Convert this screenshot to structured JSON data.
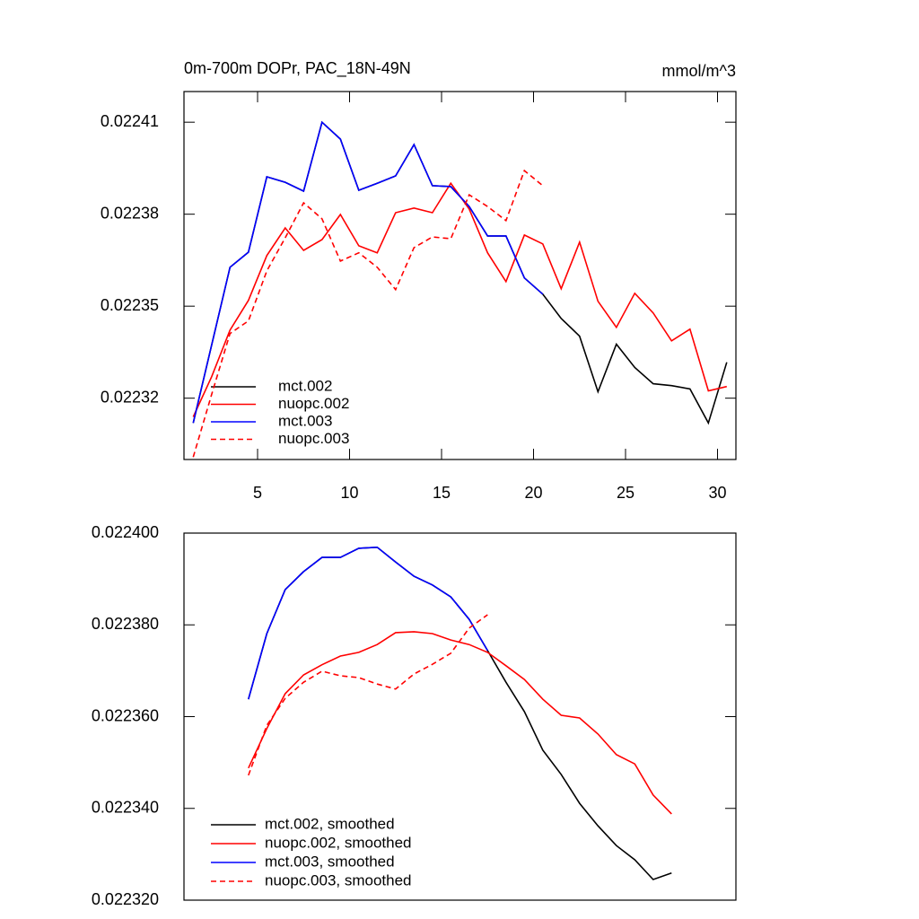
{
  "chart_data": [
    {
      "type": "line",
      "title": "0m-700m DOPr, PAC_18N-49N",
      "unit_label": "mmol/m^3",
      "x": [
        1.5,
        2.5,
        3.5,
        4.5,
        5.5,
        6.5,
        7.5,
        8.5,
        9.5,
        10.5,
        11.5,
        12.5,
        13.5,
        14.5,
        15.5,
        16.5,
        17.5,
        18.5,
        19.5,
        20.5,
        21.5,
        22.5,
        23.5,
        24.5,
        25.5,
        26.5,
        27.5,
        28.5,
        29.5,
        30.5
      ],
      "xlim": [
        1,
        31
      ],
      "xticks": [
        5,
        10,
        15,
        20,
        25,
        30
      ],
      "ylim": [
        0.0223,
        0.02242
      ],
      "yticks": [
        0.02232,
        0.02235,
        0.02238,
        0.02241
      ],
      "legend": "lower left",
      "series": [
        {
          "name": "mct.002",
          "color": "#000000",
          "dash": false,
          "values": [
            0.0223119,
            0.0223373,
            0.0223627,
            0.0223676,
            0.0223922,
            0.0223904,
            0.0223875,
            0.02241,
            0.0224045,
            0.0223878,
            0.0223901,
            0.0223925,
            0.0224027,
            0.0223893,
            0.022389,
            0.0223825,
            0.0223729,
            0.0223729,
            0.0223592,
            0.0223539,
            0.022346,
            0.0223402,
            0.0223221,
            0.0223376,
            0.02233,
            0.0223247,
            0.0223241,
            0.022323,
            0.0223119,
            0.0223317
          ]
        },
        {
          "name": "nuopc.002",
          "color": "#ff0000",
          "dash": false,
          "values": [
            0.0223139,
            0.022327,
            0.0223422,
            0.0223519,
            0.0223665,
            0.0223755,
            0.0223682,
            0.0223717,
            0.0223799,
            0.0223697,
            0.0223674,
            0.0223805,
            0.022382,
            0.0223805,
            0.0223901,
            0.0223817,
            0.0223674,
            0.022358,
            0.0223732,
            0.0223703,
            0.0223557,
            0.0223709,
            0.0223516,
            0.0223431,
            0.0223542,
            0.0223478,
            0.0223387,
            0.0223425,
            0.0223224,
            0.0223238
          ]
        },
        {
          "name": "mct.003",
          "color": "#0000ff",
          "dash": false,
          "values": [
            0.0223119,
            0.0223373,
            0.0223627,
            0.0223676,
            0.0223922,
            0.0223904,
            0.0223875,
            0.02241,
            0.0224045,
            0.0223878,
            0.0223901,
            0.0223925,
            0.0224027,
            0.0223893,
            0.022389,
            0.0223825,
            0.0223729,
            0.0223729,
            0.0223592,
            0.0223539,
            null,
            null,
            null,
            null,
            null,
            null,
            null,
            null,
            null,
            null
          ]
        },
        {
          "name": "nuopc.003",
          "color": "#ff0000",
          "dash": true,
          "values": [
            0.0223008,
            0.0223212,
            0.0223411,
            0.0223452,
            0.0223615,
            0.0223723,
            0.0223837,
            0.0223785,
            0.0223647,
            0.0223674,
            0.0223627,
            0.0223554,
            0.0223691,
            0.0223726,
            0.022372,
            0.0223863,
            0.0223825,
            0.0223779,
            0.0223942,
            0.0223893,
            null,
            null,
            null,
            null,
            null,
            null,
            null,
            null,
            null,
            null
          ]
        }
      ]
    },
    {
      "type": "line",
      "x": [
        4.5,
        5.5,
        6.5,
        7.5,
        8.5,
        9.5,
        10.5,
        11.5,
        12.5,
        13.5,
        14.5,
        15.5,
        16.5,
        17.5,
        18.5,
        19.5,
        20.5,
        21.5,
        22.5,
        23.5,
        24.5,
        25.5,
        26.5,
        27.5
      ],
      "xlim": [
        1,
        31
      ],
      "ylim": [
        0.02232,
        0.0224
      ],
      "yticks": [
        {
          "value": 0.02232,
          "label": "0.022320"
        },
        {
          "value": 0.02234,
          "label": "0.022340"
        },
        {
          "value": 0.02236,
          "label": "0.022360"
        },
        {
          "value": 0.02238,
          "label": "0.022380"
        },
        {
          "value": 0.0224,
          "label": "0.022400"
        }
      ],
      "legend": "lower left",
      "series": [
        {
          "name": "mct.002, smoothed",
          "color": "#000000",
          "dash": false,
          "values": [
            0.0223638,
            0.0223781,
            0.0223877,
            0.0223916,
            0.0223947,
            0.0223947,
            0.0223967,
            0.0223969,
            0.0223937,
            0.0223906,
            0.0223887,
            0.0223861,
            0.0223812,
            0.0223744,
            0.0223675,
            0.0223611,
            0.0223527,
            0.0223474,
            0.0223411,
            0.0223362,
            0.0223319,
            0.0223288,
            0.0223245,
            0.0223259
          ]
        },
        {
          "name": "nuopc.002, smoothed",
          "color": "#ff0000",
          "dash": false,
          "values": [
            0.0223488,
            0.0223574,
            0.022365,
            0.0223691,
            0.0223713,
            0.0223732,
            0.022374,
            0.0223757,
            0.0223783,
            0.0223785,
            0.0223781,
            0.0223767,
            0.0223757,
            0.022374,
            0.0223711,
            0.0223681,
            0.0223638,
            0.0223603,
            0.0223597,
            0.0223562,
            0.0223517,
            0.0223497,
            0.0223429,
            0.0223388
          ]
        },
        {
          "name": "mct.003, smoothed",
          "color": "#0000ff",
          "dash": false,
          "values": [
            0.0223638,
            0.0223781,
            0.0223877,
            0.0223916,
            0.0223947,
            0.0223947,
            0.0223967,
            0.0223969,
            0.0223937,
            0.0223906,
            0.0223887,
            0.0223861,
            0.0223812,
            0.0223744,
            null,
            null,
            null,
            null,
            null,
            null,
            null,
            null,
            null,
            null
          ]
        },
        {
          "name": "nuopc.003, smoothed",
          "color": "#ff0000",
          "dash": true,
          "values": [
            0.0223472,
            0.0223581,
            0.022364,
            0.0223675,
            0.0223699,
            0.0223689,
            0.0223685,
            0.0223671,
            0.022366,
            0.0223693,
            0.0223714,
            0.0223738,
            0.0223793,
            0.0223822,
            null,
            null,
            null,
            null,
            null,
            null,
            null,
            null,
            null,
            null
          ]
        }
      ]
    }
  ]
}
